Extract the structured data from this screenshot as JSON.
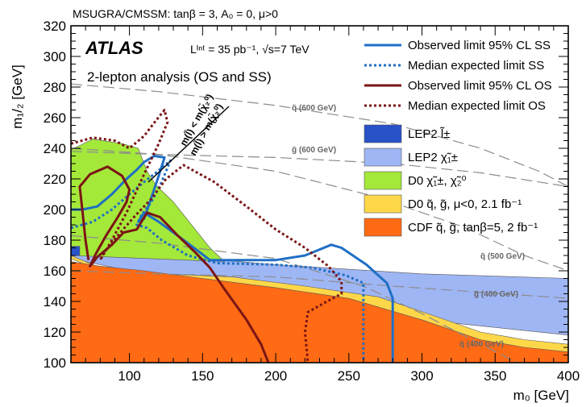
{
  "header": "MSUGRA/CMSSM: tanβ = 3, A₀ = 0, μ>0",
  "atlas_label": "ATLAS",
  "lumi_text": "Lᴵⁿᵗ = 35 pb⁻¹, √s=7 TeV",
  "analysis_text": "2-lepton analysis (OS and SS)",
  "kinematic_labels": [
    "m(l̃) < m(χ̃₂⁰)",
    "m(l̃) > m(χ̃₂⁰)"
  ],
  "chart_data": {
    "type": "line",
    "xlabel": "m₀ [GeV]",
    "ylabel": "m₁/₂ [GeV]",
    "xlim": [
      60,
      400
    ],
    "ylim": [
      100,
      320
    ],
    "x_ticks": [
      100,
      150,
      200,
      250,
      300,
      350,
      400
    ],
    "y_ticks": [
      100,
      120,
      140,
      160,
      180,
      200,
      220,
      240,
      260,
      280,
      300,
      320
    ],
    "legend_position": "top-right",
    "colors": {
      "observed_ss": "#1f6fc5",
      "expected_ss": "#1f6fc5",
      "observed_os": "#7b1515",
      "expected_os": "#7b1515",
      "lep2_slepton": "#2952c8",
      "lep2_chargino": "#9fb6f5",
      "d0_chargino": "#a4e83a",
      "d0_squark": "#ffd84a",
      "cdf": "#ff6a14"
    },
    "series": [
      {
        "key": "observed_ss",
        "name": "Observed limit 95% CL SS",
        "style": "solid",
        "points": [
          [
            60,
            200
          ],
          [
            68,
            200
          ],
          [
            78,
            202
          ],
          [
            88,
            210
          ],
          [
            98,
            220
          ],
          [
            105,
            226
          ],
          [
            110,
            231
          ],
          [
            117,
            235
          ],
          [
            124,
            234
          ],
          [
            120,
            222
          ],
          [
            114,
            205
          ],
          [
            110,
            194
          ],
          [
            106,
            192
          ],
          [
            110,
            198
          ],
          [
            120,
            192
          ],
          [
            140,
            178
          ],
          [
            155,
            167
          ],
          [
            175,
            167
          ],
          [
            200,
            167
          ],
          [
            220,
            170
          ],
          [
            238,
            177
          ],
          [
            245,
            175
          ],
          [
            262,
            164
          ],
          [
            276,
            152
          ],
          [
            280,
            142
          ],
          [
            280,
            100
          ]
        ]
      },
      {
        "key": "expected_ss",
        "name": "Median expected limit SS",
        "style": "dotted",
        "points": [
          [
            60,
            188
          ],
          [
            75,
            192
          ],
          [
            88,
            200
          ],
          [
            100,
            210
          ],
          [
            110,
            218
          ],
          [
            118,
            224
          ],
          [
            128,
            232
          ],
          [
            122,
            218
          ],
          [
            115,
            205
          ],
          [
            108,
            196
          ],
          [
            105,
            190
          ],
          [
            112,
            188
          ],
          [
            122,
            180
          ],
          [
            140,
            170
          ],
          [
            160,
            165
          ],
          [
            200,
            164
          ],
          [
            225,
            162
          ],
          [
            248,
            157
          ],
          [
            260,
            152
          ],
          [
            260,
            100
          ]
        ]
      },
      {
        "key": "observed_os",
        "name": "Observed limit 95% CL OS",
        "style": "solid",
        "points": [
          [
            72,
            167
          ],
          [
            70,
            180
          ],
          [
            68,
            198
          ],
          [
            66,
            215
          ],
          [
            73,
            223
          ],
          [
            85,
            228
          ],
          [
            95,
            222
          ],
          [
            100,
            213
          ],
          [
            98,
            205
          ],
          [
            92,
            195
          ],
          [
            84,
            183
          ],
          [
            77,
            171
          ],
          [
            73,
            163
          ],
          [
            78,
            169
          ],
          [
            88,
            177
          ],
          [
            96,
            185
          ],
          [
            105,
            187
          ],
          [
            112,
            198
          ],
          [
            121,
            195
          ],
          [
            133,
            183
          ],
          [
            145,
            172
          ],
          [
            155,
            162
          ],
          [
            165,
            148
          ],
          [
            180,
            128
          ],
          [
            190,
            112
          ],
          [
            195,
            100
          ]
        ]
      },
      {
        "key": "expected_os",
        "name": "Median expected limit OS",
        "style": "dotted",
        "points": [
          [
            60,
            243
          ],
          [
            75,
            247
          ],
          [
            90,
            245
          ],
          [
            100,
            240
          ],
          [
            110,
            248
          ],
          [
            118,
            258
          ],
          [
            124,
            265
          ],
          [
            126,
            257
          ],
          [
            120,
            243
          ],
          [
            110,
            223
          ],
          [
            98,
            198
          ],
          [
            88,
            180
          ],
          [
            80,
            167
          ],
          [
            82,
            171
          ],
          [
            92,
            183
          ],
          [
            104,
            196
          ],
          [
            115,
            207
          ],
          [
            125,
            220
          ],
          [
            137,
            229
          ],
          [
            158,
            218
          ],
          [
            180,
            202
          ],
          [
            200,
            187
          ],
          [
            220,
            175
          ],
          [
            236,
            163
          ],
          [
            245,
            153
          ],
          [
            245,
            145
          ],
          [
            235,
            140
          ],
          [
            222,
            133
          ],
          [
            220,
            120
          ],
          [
            222,
            100
          ]
        ]
      }
    ],
    "regions": [
      {
        "key": "lep2_chargino",
        "name": "LEP2 χ̃₁±",
        "points": [
          [
            60,
            178
          ],
          [
            100,
            175
          ],
          [
            150,
            168
          ],
          [
            200,
            164
          ],
          [
            300,
            158
          ],
          [
            400,
            155
          ],
          [
            400,
            118
          ],
          [
            300,
            128
          ],
          [
            200,
            145
          ],
          [
            150,
            152
          ],
          [
            100,
            160
          ],
          [
            60,
            168
          ]
        ]
      },
      {
        "key": "d0_squark",
        "name": "D0 q̃, g̃, μ<0, 2.1 fb⁻¹",
        "points": [
          [
            60,
            170
          ],
          [
            80,
            162
          ],
          [
            120,
            158
          ],
          [
            170,
            156
          ],
          [
            220,
            150
          ],
          [
            270,
            143
          ],
          [
            310,
            130
          ],
          [
            340,
            120
          ],
          [
            370,
            115
          ],
          [
            400,
            112
          ],
          [
            400,
            105
          ],
          [
            360,
            109
          ],
          [
            320,
            117
          ],
          [
            270,
            131
          ],
          [
            220,
            145
          ],
          [
            170,
            150
          ],
          [
            120,
            153
          ],
          [
            80,
            160
          ],
          [
            60,
            168
          ]
        ]
      },
      {
        "key": "d0_chargino",
        "name": "D0 χ̃₁±, χ̃₂⁰",
        "points": [
          [
            60,
            239
          ],
          [
            75,
            246
          ],
          [
            95,
            243
          ],
          [
            106,
            240
          ],
          [
            112,
            225
          ],
          [
            118,
            216
          ],
          [
            130,
            205
          ],
          [
            155,
            175
          ],
          [
            165,
            166
          ],
          [
            60,
            170
          ]
        ]
      },
      {
        "key": "cdf",
        "name": "CDF q̃, g̃, tanβ=5, 2 fb⁻¹",
        "points": [
          [
            60,
            166
          ],
          [
            80,
            163
          ],
          [
            110,
            160
          ],
          [
            150,
            155
          ],
          [
            200,
            149
          ],
          [
            250,
            142
          ],
          [
            300,
            128
          ],
          [
            340,
            115
          ],
          [
            370,
            110
          ],
          [
            400,
            107
          ],
          [
            400,
            100
          ],
          [
            60,
            100
          ]
        ]
      },
      {
        "key": "lep2_slepton",
        "name": "LEP2 l̃±",
        "points": [
          [
            60,
            176
          ],
          [
            66,
            176
          ],
          [
            66,
            170
          ],
          [
            60,
            170
          ]
        ]
      }
    ],
    "iso_mass_lines": [
      {
        "label": "q̃ (600 GeV)",
        "points": [
          [
            60,
            282
          ],
          [
            120,
            277
          ],
          [
            200,
            268
          ],
          [
            280,
            256
          ],
          [
            340,
            240
          ],
          [
            380,
            225
          ],
          [
            400,
            215
          ]
        ]
      },
      {
        "label": "g̃ (600 GeV)",
        "points": [
          [
            60,
            238
          ],
          [
            120,
            236
          ],
          [
            200,
            234
          ],
          [
            280,
            230
          ],
          [
            340,
            224
          ],
          [
            380,
            218
          ],
          [
            400,
            215
          ]
        ]
      },
      {
        "label": "q̃ (500 GeV)",
        "points": [
          [
            60,
            240
          ],
          [
            120,
            236
          ],
          [
            200,
            225
          ],
          [
            270,
            208
          ],
          [
            330,
            188
          ],
          [
            370,
            170
          ],
          [
            400,
            160
          ]
        ]
      },
      {
        "label": "g̃ (400 GeV)",
        "points": [
          [
            60,
            160
          ],
          [
            120,
            158
          ],
          [
            200,
            156
          ],
          [
            280,
            150
          ],
          [
            340,
            146
          ],
          [
            400,
            142
          ]
        ]
      },
      {
        "label": "q̃ (400 GeV)",
        "points": [
          [
            60,
            183
          ],
          [
            120,
            178
          ],
          [
            200,
            168
          ],
          [
            260,
            150
          ],
          [
            300,
            132
          ],
          [
            330,
            117
          ],
          [
            355,
            105
          ],
          [
            365,
            100
          ]
        ]
      }
    ]
  }
}
